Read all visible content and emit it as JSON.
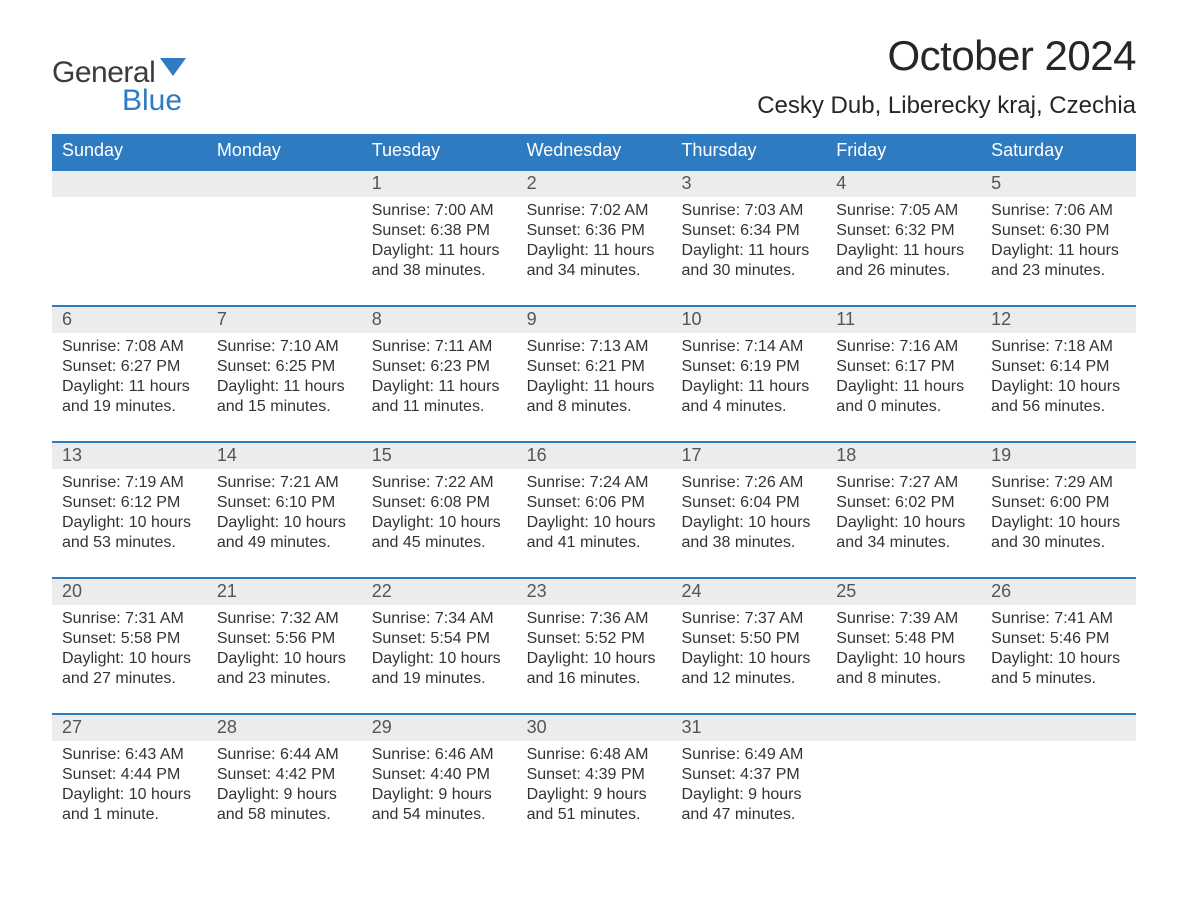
{
  "logo": {
    "word1": "General",
    "word2": "Blue"
  },
  "title": "October 2024",
  "location": "Cesky Dub, Liberecky kraj, Czechia",
  "colors": {
    "header_bg": "#2f7bc2",
    "header_text": "#ffffff",
    "daynum_bg": "#ececec",
    "text": "#333333",
    "logo_gray": "#3b3b3b",
    "logo_blue": "#2f7bc2"
  },
  "day_names": [
    "Sunday",
    "Monday",
    "Tuesday",
    "Wednesday",
    "Thursday",
    "Friday",
    "Saturday"
  ],
  "weeks": [
    [
      {
        "n": "",
        "sr": "",
        "ss": "",
        "dl1": "",
        "dl2": ""
      },
      {
        "n": "",
        "sr": "",
        "ss": "",
        "dl1": "",
        "dl2": ""
      },
      {
        "n": "1",
        "sr": "Sunrise: 7:00 AM",
        "ss": "Sunset: 6:38 PM",
        "dl1": "Daylight: 11 hours",
        "dl2": "and 38 minutes."
      },
      {
        "n": "2",
        "sr": "Sunrise: 7:02 AM",
        "ss": "Sunset: 6:36 PM",
        "dl1": "Daylight: 11 hours",
        "dl2": "and 34 minutes."
      },
      {
        "n": "3",
        "sr": "Sunrise: 7:03 AM",
        "ss": "Sunset: 6:34 PM",
        "dl1": "Daylight: 11 hours",
        "dl2": "and 30 minutes."
      },
      {
        "n": "4",
        "sr": "Sunrise: 7:05 AM",
        "ss": "Sunset: 6:32 PM",
        "dl1": "Daylight: 11 hours",
        "dl2": "and 26 minutes."
      },
      {
        "n": "5",
        "sr": "Sunrise: 7:06 AM",
        "ss": "Sunset: 6:30 PM",
        "dl1": "Daylight: 11 hours",
        "dl2": "and 23 minutes."
      }
    ],
    [
      {
        "n": "6",
        "sr": "Sunrise: 7:08 AM",
        "ss": "Sunset: 6:27 PM",
        "dl1": "Daylight: 11 hours",
        "dl2": "and 19 minutes."
      },
      {
        "n": "7",
        "sr": "Sunrise: 7:10 AM",
        "ss": "Sunset: 6:25 PM",
        "dl1": "Daylight: 11 hours",
        "dl2": "and 15 minutes."
      },
      {
        "n": "8",
        "sr": "Sunrise: 7:11 AM",
        "ss": "Sunset: 6:23 PM",
        "dl1": "Daylight: 11 hours",
        "dl2": "and 11 minutes."
      },
      {
        "n": "9",
        "sr": "Sunrise: 7:13 AM",
        "ss": "Sunset: 6:21 PM",
        "dl1": "Daylight: 11 hours",
        "dl2": "and 8 minutes."
      },
      {
        "n": "10",
        "sr": "Sunrise: 7:14 AM",
        "ss": "Sunset: 6:19 PM",
        "dl1": "Daylight: 11 hours",
        "dl2": "and 4 minutes."
      },
      {
        "n": "11",
        "sr": "Sunrise: 7:16 AM",
        "ss": "Sunset: 6:17 PM",
        "dl1": "Daylight: 11 hours",
        "dl2": "and 0 minutes."
      },
      {
        "n": "12",
        "sr": "Sunrise: 7:18 AM",
        "ss": "Sunset: 6:14 PM",
        "dl1": "Daylight: 10 hours",
        "dl2": "and 56 minutes."
      }
    ],
    [
      {
        "n": "13",
        "sr": "Sunrise: 7:19 AM",
        "ss": "Sunset: 6:12 PM",
        "dl1": "Daylight: 10 hours",
        "dl2": "and 53 minutes."
      },
      {
        "n": "14",
        "sr": "Sunrise: 7:21 AM",
        "ss": "Sunset: 6:10 PM",
        "dl1": "Daylight: 10 hours",
        "dl2": "and 49 minutes."
      },
      {
        "n": "15",
        "sr": "Sunrise: 7:22 AM",
        "ss": "Sunset: 6:08 PM",
        "dl1": "Daylight: 10 hours",
        "dl2": "and 45 minutes."
      },
      {
        "n": "16",
        "sr": "Sunrise: 7:24 AM",
        "ss": "Sunset: 6:06 PM",
        "dl1": "Daylight: 10 hours",
        "dl2": "and 41 minutes."
      },
      {
        "n": "17",
        "sr": "Sunrise: 7:26 AM",
        "ss": "Sunset: 6:04 PM",
        "dl1": "Daylight: 10 hours",
        "dl2": "and 38 minutes."
      },
      {
        "n": "18",
        "sr": "Sunrise: 7:27 AM",
        "ss": "Sunset: 6:02 PM",
        "dl1": "Daylight: 10 hours",
        "dl2": "and 34 minutes."
      },
      {
        "n": "19",
        "sr": "Sunrise: 7:29 AM",
        "ss": "Sunset: 6:00 PM",
        "dl1": "Daylight: 10 hours",
        "dl2": "and 30 minutes."
      }
    ],
    [
      {
        "n": "20",
        "sr": "Sunrise: 7:31 AM",
        "ss": "Sunset: 5:58 PM",
        "dl1": "Daylight: 10 hours",
        "dl2": "and 27 minutes."
      },
      {
        "n": "21",
        "sr": "Sunrise: 7:32 AM",
        "ss": "Sunset: 5:56 PM",
        "dl1": "Daylight: 10 hours",
        "dl2": "and 23 minutes."
      },
      {
        "n": "22",
        "sr": "Sunrise: 7:34 AM",
        "ss": "Sunset: 5:54 PM",
        "dl1": "Daylight: 10 hours",
        "dl2": "and 19 minutes."
      },
      {
        "n": "23",
        "sr": "Sunrise: 7:36 AM",
        "ss": "Sunset: 5:52 PM",
        "dl1": "Daylight: 10 hours",
        "dl2": "and 16 minutes."
      },
      {
        "n": "24",
        "sr": "Sunrise: 7:37 AM",
        "ss": "Sunset: 5:50 PM",
        "dl1": "Daylight: 10 hours",
        "dl2": "and 12 minutes."
      },
      {
        "n": "25",
        "sr": "Sunrise: 7:39 AM",
        "ss": "Sunset: 5:48 PM",
        "dl1": "Daylight: 10 hours",
        "dl2": "and 8 minutes."
      },
      {
        "n": "26",
        "sr": "Sunrise: 7:41 AM",
        "ss": "Sunset: 5:46 PM",
        "dl1": "Daylight: 10 hours",
        "dl2": "and 5 minutes."
      }
    ],
    [
      {
        "n": "27",
        "sr": "Sunrise: 6:43 AM",
        "ss": "Sunset: 4:44 PM",
        "dl1": "Daylight: 10 hours",
        "dl2": "and 1 minute."
      },
      {
        "n": "28",
        "sr": "Sunrise: 6:44 AM",
        "ss": "Sunset: 4:42 PM",
        "dl1": "Daylight: 9 hours",
        "dl2": "and 58 minutes."
      },
      {
        "n": "29",
        "sr": "Sunrise: 6:46 AM",
        "ss": "Sunset: 4:40 PM",
        "dl1": "Daylight: 9 hours",
        "dl2": "and 54 minutes."
      },
      {
        "n": "30",
        "sr": "Sunrise: 6:48 AM",
        "ss": "Sunset: 4:39 PM",
        "dl1": "Daylight: 9 hours",
        "dl2": "and 51 minutes."
      },
      {
        "n": "31",
        "sr": "Sunrise: 6:49 AM",
        "ss": "Sunset: 4:37 PM",
        "dl1": "Daylight: 9 hours",
        "dl2": "and 47 minutes."
      },
      {
        "n": "",
        "sr": "",
        "ss": "",
        "dl1": "",
        "dl2": ""
      },
      {
        "n": "",
        "sr": "",
        "ss": "",
        "dl1": "",
        "dl2": ""
      }
    ]
  ]
}
